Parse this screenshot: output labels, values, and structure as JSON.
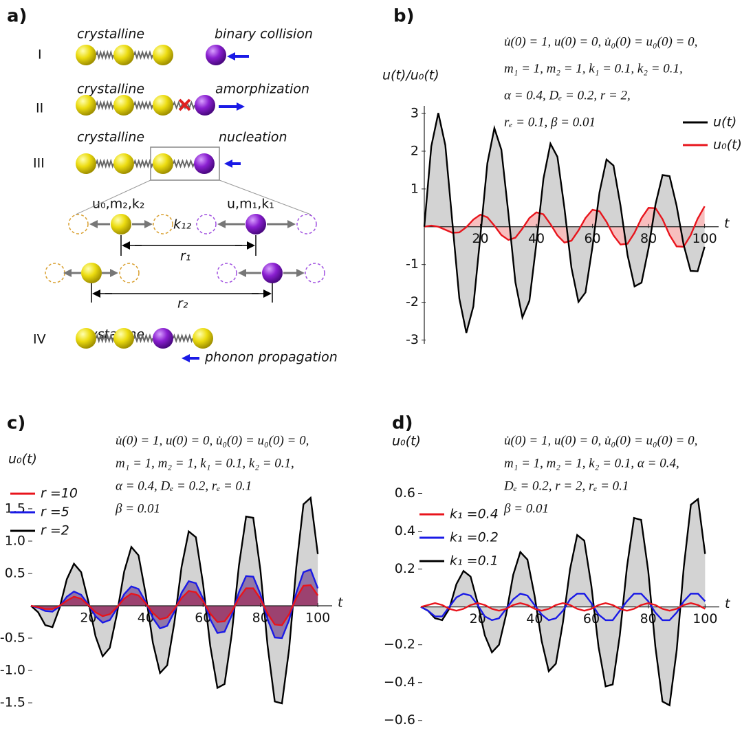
{
  "diagram": {
    "panel_label": "a)",
    "rows": [
      {
        "numeral": "I",
        "left": "crystalline",
        "right": "binary collision"
      },
      {
        "numeral": "II",
        "left": "crystalline",
        "right": "amorphization"
      },
      {
        "numeral": "III",
        "left": "crystalline",
        "right": "nucleation"
      },
      {
        "numeral": "IV",
        "left": "crystalline",
        "right": "phonon propagation"
      }
    ],
    "zoom": {
      "left_label": "u₀,m₂,k₂",
      "right_label": "u,m₁,k₁",
      "coupling": "k₁₂",
      "r1": "r₁",
      "r2": "r₂"
    }
  },
  "chart_data": [
    {
      "type": "line",
      "panel_label": "b)",
      "y_label": "u(t)/u₀(t)",
      "x_label": "t",
      "annotations": [
        "u̇(0) = 1, u(0) = 0, u̇₀(0) = u₀(0) = 0,",
        "m₁ = 1, m₂ = 1, k₁ = 0.1, k₂ = 0.1,",
        "α = 0.4, Dₑ = 0.2, r = 2,",
        "rₑ = 0.1, β = 0.01"
      ],
      "legend": "upper right",
      "x": [
        0,
        2.5,
        5,
        7.5,
        10,
        12.5,
        15,
        17.5,
        20,
        22.5,
        25,
        27.5,
        30,
        32.5,
        35,
        37.5,
        40,
        42.5,
        45,
        47.5,
        50,
        52.5,
        55,
        57.5,
        60,
        62.5,
        65,
        67.5,
        70,
        72.5,
        75,
        77.5,
        80,
        82.5,
        85,
        87.5,
        90,
        92.5,
        95,
        97.5,
        100
      ],
      "xlim": [
        0,
        105
      ],
      "xticks": [
        20,
        40,
        60,
        80,
        100
      ],
      "ylim": [
        -3.1,
        3.2
      ],
      "yticks": [
        -3,
        -2,
        -1,
        1,
        2,
        3
      ],
      "series": [
        {
          "name": "u(t)",
          "color": "#000000",
          "fill": "#c4c4c4",
          "values": [
            0,
            2.13,
            3.01,
            2.16,
            0.13,
            -1.9,
            -2.81,
            -2.11,
            -0.25,
            1.68,
            2.61,
            2.04,
            0.35,
            -1.47,
            -2.4,
            -1.96,
            -0.43,
            1.27,
            2.2,
            1.85,
            0.49,
            -1.09,
            -1.99,
            -1.74,
            -0.53,
            0.91,
            1.78,
            1.62,
            0.56,
            -0.75,
            -1.58,
            -1.48,
            -0.57,
            0.6,
            1.37,
            1.34,
            0.56,
            -0.47,
            -1.17,
            -1.18,
            -0.53
          ]
        },
        {
          "name": "u₀(t)",
          "color": "#e8141c",
          "fill": "#f4a8a8",
          "values": [
            0,
            0.03,
            0,
            -0.08,
            -0.16,
            -0.15,
            -0.01,
            0.19,
            0.32,
            0.25,
            0.03,
            -0.22,
            -0.35,
            -0.29,
            -0.05,
            0.23,
            0.38,
            0.33,
            0.07,
            -0.23,
            -0.42,
            -0.37,
            -0.1,
            0.23,
            0.45,
            0.41,
            0.13,
            -0.23,
            -0.47,
            -0.45,
            -0.16,
            0.23,
            0.5,
            0.49,
            0.2,
            -0.22,
            -0.52,
            -0.53,
            -0.23,
            0.21,
            0.54
          ]
        }
      ]
    },
    {
      "type": "line",
      "panel_label": "c)",
      "y_label": "u₀(t)",
      "x_label": "t",
      "annotations": [
        "u̇(0) = 1, u(0) = 0, u̇₀(0) = u₀(0) = 0,",
        "m₁ = 1, m₂ = 1, k₁ = 0.1, k₂ = 0.1,",
        "α = 0.4, Dₑ = 0.2, rₑ = 0.1",
        "β = 0.01"
      ],
      "legend": "upper left",
      "x": [
        0,
        2.5,
        5,
        7.5,
        10,
        12.5,
        15,
        17.5,
        20,
        22.5,
        25,
        27.5,
        30,
        32.5,
        35,
        37.5,
        40,
        42.5,
        45,
        47.5,
        50,
        52.5,
        55,
        57.5,
        60,
        62.5,
        65,
        67.5,
        70,
        72.5,
        75,
        77.5,
        80,
        82.5,
        85,
        87.5,
        90,
        92.5,
        95,
        97.5,
        100
      ],
      "xlim": [
        0,
        105
      ],
      "xticks": [
        20,
        40,
        60,
        80,
        100
      ],
      "ylim": [
        -1.85,
        1.85
      ],
      "yticks": [
        -1.5,
        {
          "value": -1,
          "label": "-1.0"
        },
        -0.5,
        0.5,
        {
          "value": 1,
          "label": "1.0"
        },
        1.5
      ],
      "series": [
        {
          "name": "r =10",
          "color": "#e8141c",
          "fill": "#a0305e",
          "values": [
            0,
            -0.02,
            -0.05,
            -0.05,
            0,
            0.08,
            0.14,
            0.11,
            0.01,
            -0.1,
            -0.16,
            -0.13,
            -0.02,
            0.11,
            0.19,
            0.16,
            0.04,
            -0.11,
            -0.21,
            -0.18,
            -0.05,
            0.12,
            0.23,
            0.21,
            0.07,
            -0.12,
            -0.25,
            -0.24,
            -0.09,
            0.12,
            0.27,
            0.27,
            0.11,
            -0.12,
            -0.29,
            -0.3,
            -0.13,
            0.12,
            0.31,
            0.32,
            0.16
          ]
        },
        {
          "name": "r =5",
          "color": "#1a1ae6",
          "fill": "#7a5a9a",
          "values": [
            0,
            -0.03,
            -0.08,
            -0.09,
            -0.01,
            0.14,
            0.22,
            0.17,
            0.02,
            -0.16,
            -0.26,
            -0.22,
            -0.04,
            0.18,
            0.3,
            0.26,
            0.06,
            -0.19,
            -0.35,
            -0.31,
            -0.09,
            0.2,
            0.38,
            0.35,
            0.11,
            -0.21,
            -0.42,
            -0.4,
            -0.15,
            0.21,
            0.46,
            0.45,
            0.18,
            -0.21,
            -0.49,
            -0.5,
            -0.22,
            0.2,
            0.52,
            0.56,
            0.27
          ]
        },
        {
          "name": "r =2",
          "color": "#000000",
          "fill": "#c4c4c4",
          "values": [
            0,
            -0.1,
            -0.3,
            -0.33,
            -0.03,
            0.41,
            0.65,
            0.52,
            0.07,
            -0.47,
            -0.78,
            -0.65,
            -0.12,
            0.53,
            0.91,
            0.78,
            0.18,
            -0.57,
            -1.04,
            -0.92,
            -0.26,
            0.6,
            1.15,
            1.06,
            0.34,
            -0.62,
            -1.27,
            -1.21,
            -0.44,
            0.62,
            1.38,
            1.36,
            0.55,
            -0.62,
            -1.48,
            -1.51,
            -0.67,
            0.6,
            1.57,
            1.67,
            0.8
          ]
        }
      ]
    },
    {
      "type": "line",
      "panel_label": "d)",
      "y_label": "u₀(t)",
      "x_label": "t",
      "annotations": [
        "u̇(0) = 1, u(0) = 0, u̇₀(0) = u₀(0) = 0,",
        "m₁ = 1, m₂ = 1, k₂ = 0.1, α = 0.4,",
        "Dₑ = 0.2, r = 2, rₑ = 0.1",
        "β = 0.01"
      ],
      "legend": "upper left",
      "x": [
        0,
        2.5,
        5,
        7.5,
        10,
        12.5,
        15,
        17.5,
        20,
        22.5,
        25,
        27.5,
        30,
        32.5,
        35,
        37.5,
        40,
        42.5,
        45,
        47.5,
        50,
        52.5,
        55,
        57.5,
        60,
        62.5,
        65,
        67.5,
        70,
        72.5,
        75,
        77.5,
        80,
        82.5,
        85,
        87.5,
        90,
        92.5,
        95,
        97.5,
        100
      ],
      "xlim": [
        0,
        105
      ],
      "xticks": [
        20,
        40,
        60,
        80,
        100
      ],
      "ylim": [
        -0.63,
        0.66
      ],
      "yticks": [
        {
          "value": -0.6,
          "label": "−0.6"
        },
        {
          "value": -0.4,
          "label": "−0.4"
        },
        {
          "value": -0.2,
          "label": "−0.2"
        },
        0.2,
        0.4,
        0.6
      ],
      "series": [
        {
          "name": "k₁ =0.4",
          "color": "#e8141c",
          "values": [
            0,
            0.01,
            0.02,
            0.01,
            -0.01,
            -0.02,
            -0.01,
            0.01,
            0.02,
            0.01,
            -0.01,
            -0.02,
            -0.01,
            0.01,
            0.02,
            0.01,
            -0.01,
            -0.02,
            -0.01,
            0.01,
            0.02,
            0.01,
            -0.01,
            -0.02,
            -0.01,
            0.01,
            0.02,
            0.01,
            -0.01,
            -0.02,
            -0.01,
            0.01,
            0.02,
            0.01,
            -0.01,
            -0.02,
            -0.01,
            0.01,
            0.02,
            0.01,
            -0.01
          ]
        },
        {
          "name": "k₁ =0.2",
          "color": "#1a1ae6",
          "values": [
            0,
            -0.02,
            -0.05,
            -0.05,
            0,
            0.05,
            0.07,
            0.06,
            0.01,
            -0.05,
            -0.07,
            -0.06,
            -0.01,
            0.04,
            0.07,
            0.06,
            0.01,
            -0.04,
            -0.07,
            -0.06,
            -0.02,
            0.04,
            0.07,
            0.07,
            0.02,
            -0.04,
            -0.07,
            -0.07,
            -0.02,
            0.03,
            0.07,
            0.07,
            0.03,
            -0.03,
            -0.07,
            -0.07,
            -0.03,
            0.03,
            0.07,
            0.07,
            0.03
          ]
        },
        {
          "name": "k₁ =0.1",
          "color": "#000000",
          "fill": "#c4c4c4",
          "values": [
            0,
            -0.02,
            -0.06,
            -0.07,
            -0.01,
            0.12,
            0.19,
            0.16,
            0.02,
            -0.15,
            -0.24,
            -0.2,
            -0.04,
            0.17,
            0.29,
            0.25,
            0.06,
            -0.18,
            -0.34,
            -0.3,
            -0.08,
            0.2,
            0.38,
            0.35,
            0.11,
            -0.21,
            -0.42,
            -0.41,
            -0.15,
            0.21,
            0.47,
            0.46,
            0.19,
            -0.21,
            -0.5,
            -0.52,
            -0.23,
            0.21,
            0.54,
            0.57,
            0.28
          ]
        }
      ]
    }
  ]
}
